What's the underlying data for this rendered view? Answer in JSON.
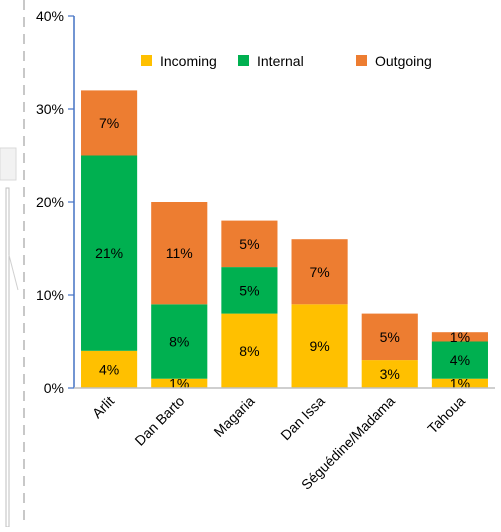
{
  "chart_data": {
    "type": "bar",
    "stacked": true,
    "categories": [
      "Arlit",
      "Dan Barto",
      "Magaria",
      "Dan Issa",
      "Séguédine/Madama",
      "Tahoua"
    ],
    "series": [
      {
        "name": "Incoming",
        "color": "#FFC000",
        "values": [
          4,
          1,
          8,
          9,
          3,
          1
        ],
        "labels": [
          "4%",
          "1%",
          "8%",
          "9%",
          "3%",
          "1%"
        ]
      },
      {
        "name": "Internal",
        "color": "#00B050",
        "values": [
          21,
          8,
          5,
          0,
          0,
          4
        ],
        "labels": [
          "21%",
          "8%",
          "5%",
          "",
          "",
          "4%"
        ]
      },
      {
        "name": "Outgoing",
        "color": "#ED7D31",
        "values": [
          7,
          11,
          5,
          7,
          5,
          1
        ],
        "labels": [
          "7%",
          "11%",
          "5%",
          "7%",
          "5%",
          "1%"
        ]
      }
    ],
    "y_ticks": [
      "0%",
      "10%",
      "20%",
      "30%",
      "40%"
    ],
    "ylim": [
      0,
      40
    ],
    "y_unit": "%",
    "legend_position": "top-right",
    "grid": false
  }
}
